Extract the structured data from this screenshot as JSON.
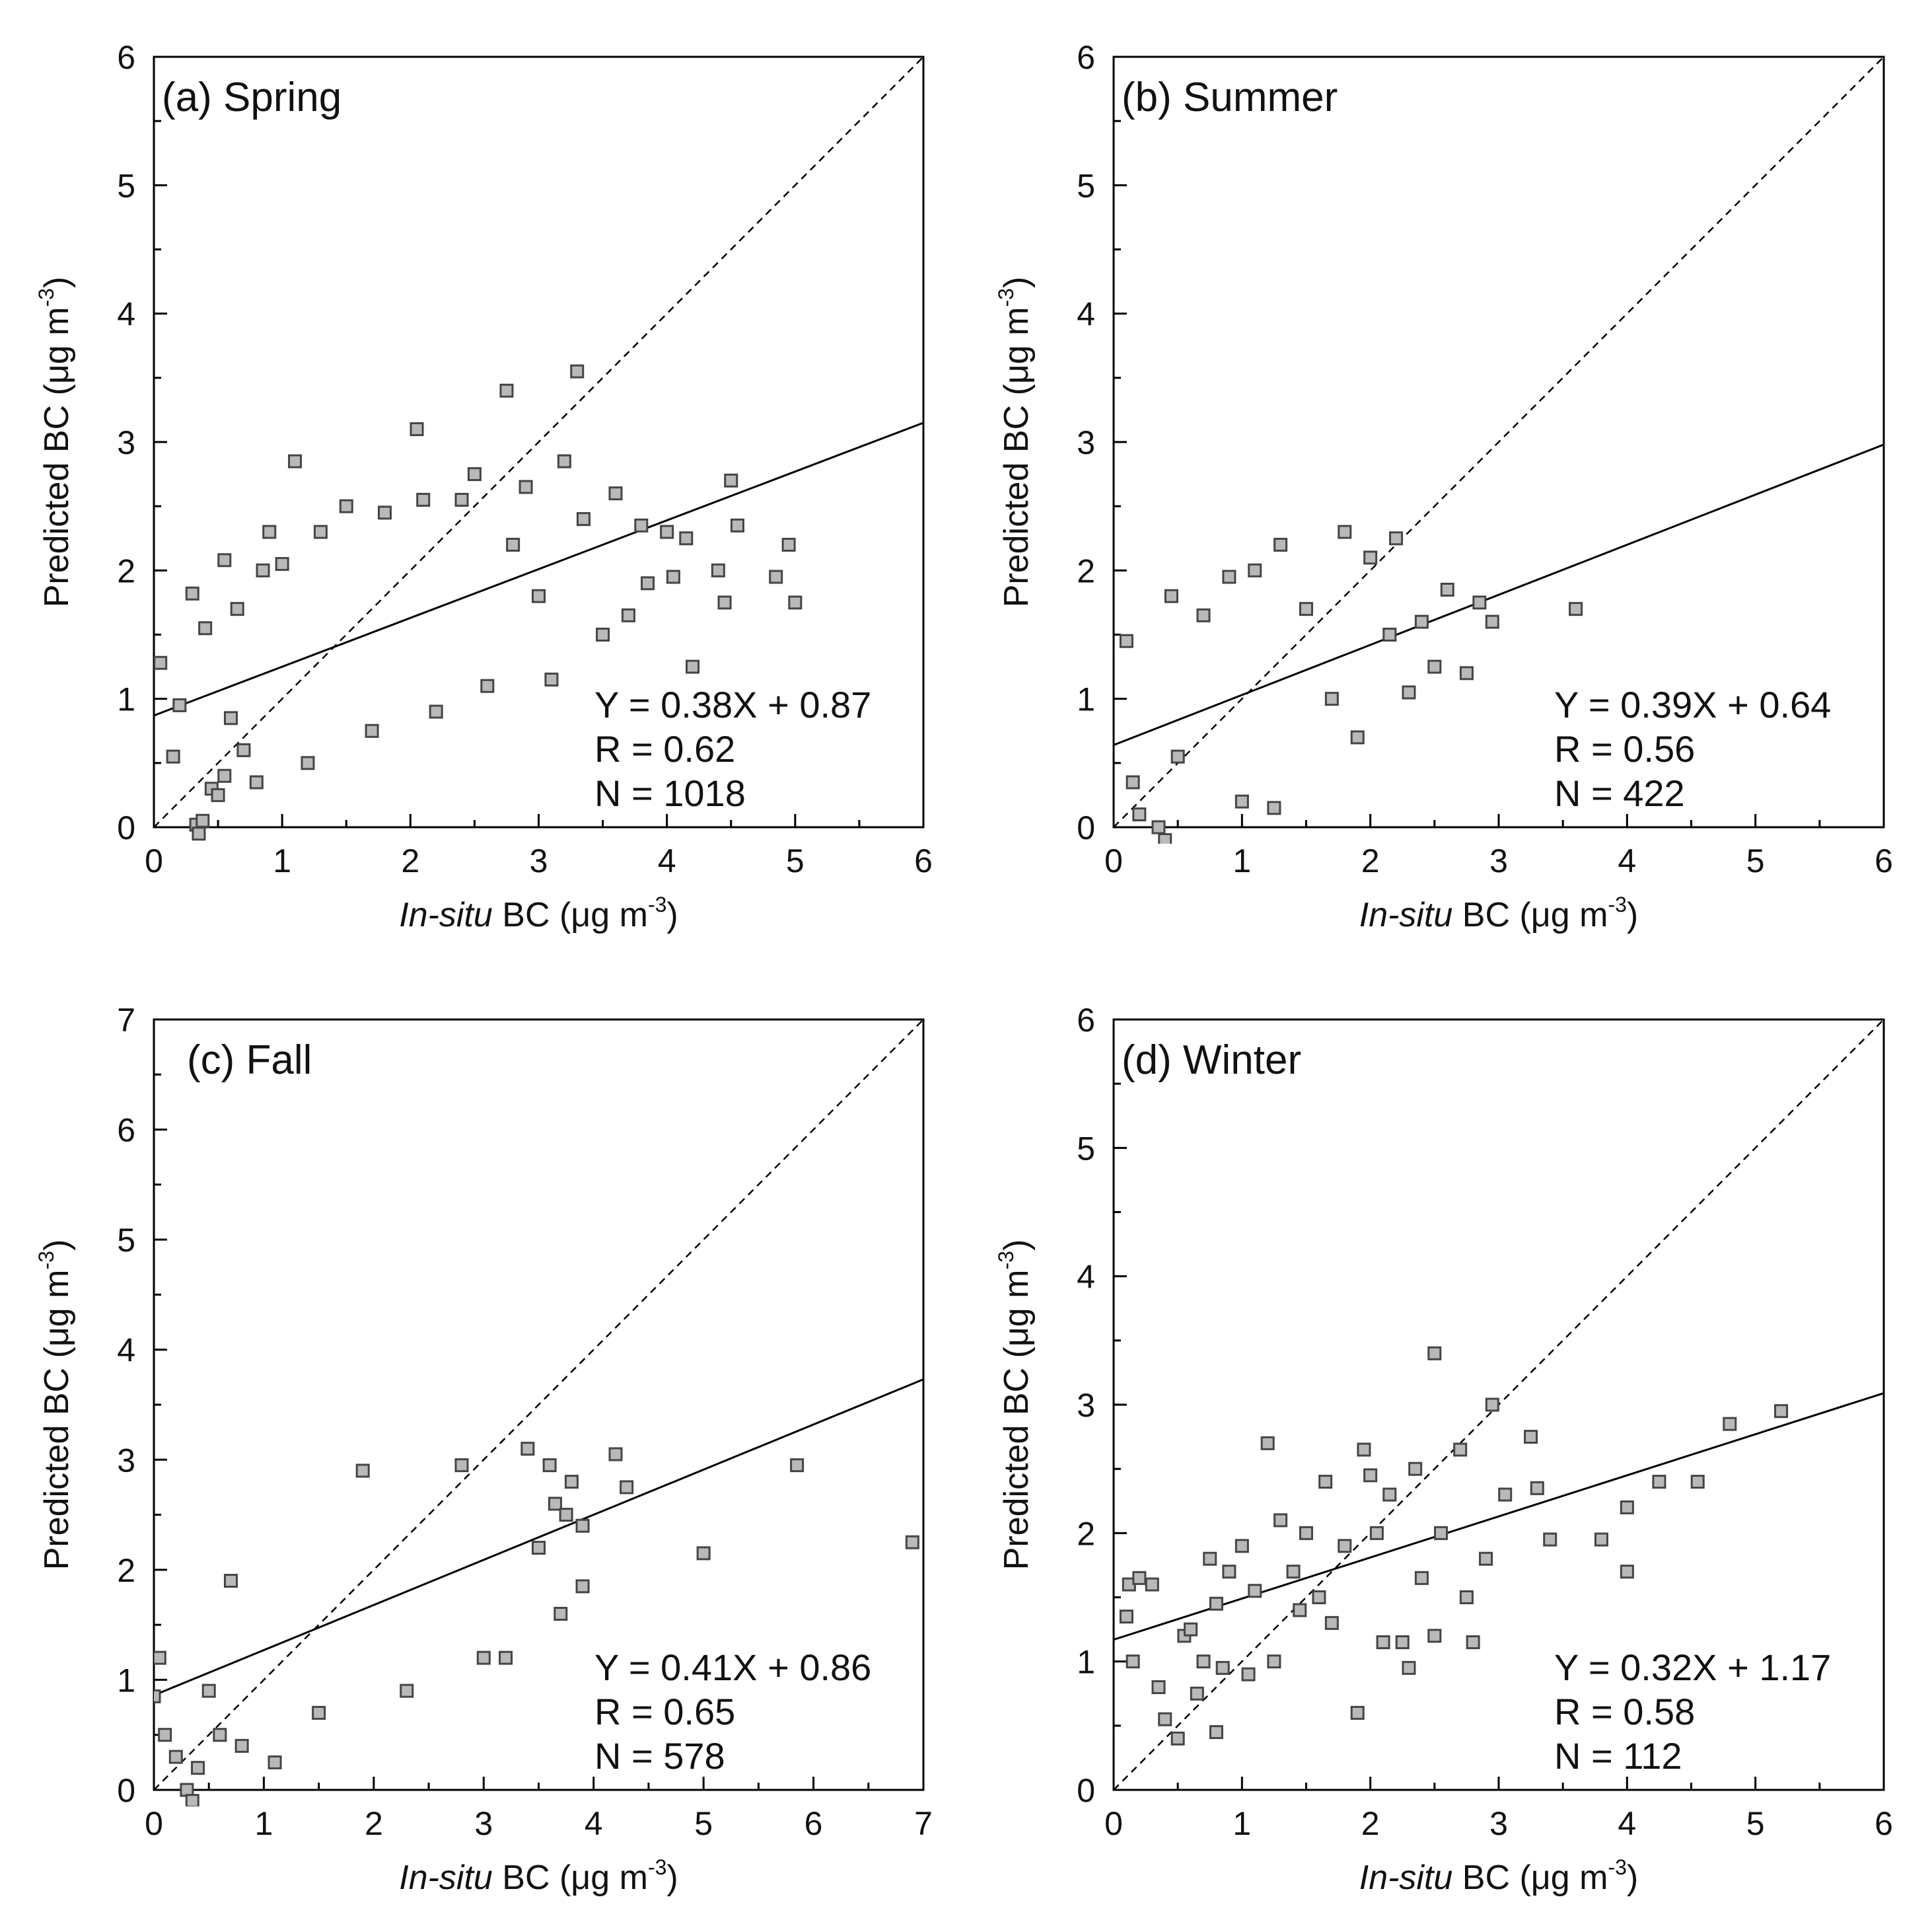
{
  "figure": {
    "y_axis_label": "Predicted BC (μg m",
    "x_axis_label_italic": "In-situ",
    "x_axis_label_rest": " BC (μg m",
    "unit_exponent": "-3",
    "unit_close": ")"
  },
  "chart_data": [
    {
      "type": "scatter",
      "title": "(a) Spring",
      "xlim": [
        0,
        6
      ],
      "ylim": [
        0,
        6
      ],
      "xticks": [
        "0",
        "1",
        "2",
        "3",
        "4",
        "5",
        "6"
      ],
      "yticks": [
        "0",
        "1",
        "2",
        "3",
        "4",
        "5",
        "6"
      ],
      "fit": {
        "slope": 0.38,
        "intercept": 0.87
      },
      "reference_line": "1:1",
      "stats": {
        "equation": "Y = 0.38X + 0.87",
        "r": "R = 0.62",
        "n": "N = 1018"
      },
      "points": [
        [
          0.05,
          1.28
        ],
        [
          0.15,
          0.55
        ],
        [
          0.2,
          0.95
        ],
        [
          0.3,
          1.82
        ],
        [
          0.33,
          0.02
        ],
        [
          0.35,
          -0.05
        ],
        [
          0.38,
          0.05
        ],
        [
          0.4,
          1.55
        ],
        [
          0.45,
          0.3
        ],
        [
          0.5,
          0.25
        ],
        [
          0.55,
          2.08
        ],
        [
          0.55,
          0.4
        ],
        [
          0.6,
          0.85
        ],
        [
          0.65,
          1.7
        ],
        [
          0.7,
          0.6
        ],
        [
          0.8,
          0.35
        ],
        [
          0.85,
          2.0
        ],
        [
          0.9,
          2.3
        ],
        [
          1.0,
          2.05
        ],
        [
          1.1,
          2.85
        ],
        [
          1.2,
          0.5
        ],
        [
          1.3,
          2.3
        ],
        [
          1.5,
          2.5
        ],
        [
          1.7,
          0.75
        ],
        [
          1.8,
          2.45
        ],
        [
          2.05,
          3.1
        ],
        [
          2.1,
          2.55
        ],
        [
          2.2,
          0.9
        ],
        [
          2.4,
          2.55
        ],
        [
          2.5,
          2.75
        ],
        [
          2.6,
          1.1
        ],
        [
          2.75,
          3.4
        ],
        [
          2.8,
          2.2
        ],
        [
          2.9,
          2.65
        ],
        [
          3.0,
          1.8
        ],
        [
          3.1,
          1.15
        ],
        [
          3.2,
          2.85
        ],
        [
          3.3,
          3.55
        ],
        [
          3.35,
          2.4
        ],
        [
          3.5,
          1.5
        ],
        [
          3.6,
          2.6
        ],
        [
          3.7,
          1.65
        ],
        [
          3.8,
          2.35
        ],
        [
          3.85,
          1.9
        ],
        [
          4.0,
          2.3
        ],
        [
          4.05,
          1.95
        ],
        [
          4.15,
          2.25
        ],
        [
          4.2,
          1.25
        ],
        [
          4.4,
          2.0
        ],
        [
          4.45,
          1.75
        ],
        [
          4.5,
          2.7
        ],
        [
          4.55,
          2.35
        ],
        [
          4.85,
          1.95
        ],
        [
          4.95,
          2.2
        ],
        [
          5.0,
          1.75
        ]
      ]
    },
    {
      "type": "scatter",
      "title": "(b) Summer",
      "xlim": [
        0,
        6
      ],
      "ylim": [
        0,
        6
      ],
      "xticks": [
        "0",
        "1",
        "2",
        "3",
        "4",
        "5",
        "6"
      ],
      "yticks": [
        "0",
        "1",
        "2",
        "3",
        "4",
        "5",
        "6"
      ],
      "fit": {
        "slope": 0.39,
        "intercept": 0.64
      },
      "reference_line": "1:1",
      "stats": {
        "equation": "Y = 0.39X + 0.64",
        "r": "R = 0.56",
        "n": "N = 422"
      },
      "points": [
        [
          0.1,
          1.45
        ],
        [
          0.15,
          0.35
        ],
        [
          0.2,
          0.1
        ],
        [
          0.35,
          0.0
        ],
        [
          0.4,
          -0.1
        ],
        [
          0.45,
          1.8
        ],
        [
          0.5,
          0.55
        ],
        [
          0.7,
          1.65
        ],
        [
          0.9,
          1.95
        ],
        [
          1.0,
          0.2
        ],
        [
          1.1,
          2.0
        ],
        [
          1.25,
          0.15
        ],
        [
          1.3,
          2.2
        ],
        [
          1.5,
          1.7
        ],
        [
          1.7,
          1.0
        ],
        [
          1.8,
          2.3
        ],
        [
          1.9,
          0.7
        ],
        [
          2.0,
          2.1
        ],
        [
          2.15,
          1.5
        ],
        [
          2.2,
          2.25
        ],
        [
          2.3,
          1.05
        ],
        [
          2.4,
          1.6
        ],
        [
          2.5,
          1.25
        ],
        [
          2.6,
          1.85
        ],
        [
          2.75,
          1.2
        ],
        [
          2.85,
          1.75
        ],
        [
          2.95,
          1.6
        ],
        [
          3.6,
          1.7
        ]
      ]
    },
    {
      "type": "scatter",
      "title": "(c) Fall",
      "xlim": [
        0,
        7
      ],
      "ylim": [
        0,
        7
      ],
      "xticks": [
        "0",
        "1",
        "2",
        "3",
        "4",
        "5",
        "6",
        "7"
      ],
      "yticks": [
        "0",
        "1",
        "2",
        "3",
        "4",
        "5",
        "6",
        "7"
      ],
      "fit": {
        "slope": 0.41,
        "intercept": 0.86
      },
      "reference_line": "1:1",
      "stats": {
        "equation": "Y = 0.41X + 0.86",
        "r": "R = 0.65",
        "n": "N = 578"
      },
      "points": [
        [
          0.0,
          0.85
        ],
        [
          0.05,
          1.2
        ],
        [
          0.1,
          0.5
        ],
        [
          0.2,
          0.3
        ],
        [
          0.3,
          0.0
        ],
        [
          0.35,
          -0.1
        ],
        [
          0.4,
          0.2
        ],
        [
          0.5,
          0.9
        ],
        [
          0.6,
          0.5
        ],
        [
          0.7,
          1.9
        ],
        [
          0.8,
          0.4
        ],
        [
          1.1,
          0.25
        ],
        [
          1.5,
          0.7
        ],
        [
          1.9,
          2.9
        ],
        [
          2.3,
          0.9
        ],
        [
          2.8,
          2.95
        ],
        [
          3.0,
          1.2
        ],
        [
          3.2,
          1.2
        ],
        [
          3.4,
          3.1
        ],
        [
          3.5,
          2.2
        ],
        [
          3.6,
          2.95
        ],
        [
          3.65,
          2.6
        ],
        [
          3.7,
          1.6
        ],
        [
          3.75,
          2.5
        ],
        [
          3.8,
          2.8
        ],
        [
          3.9,
          2.4
        ],
        [
          3.9,
          1.85
        ],
        [
          4.2,
          3.05
        ],
        [
          4.3,
          2.75
        ],
        [
          5.0,
          2.15
        ],
        [
          5.85,
          2.95
        ],
        [
          6.9,
          2.25
        ]
      ]
    },
    {
      "type": "scatter",
      "title": "(d) Winter",
      "xlim": [
        0,
        6
      ],
      "ylim": [
        0,
        6
      ],
      "xticks": [
        "0",
        "1",
        "2",
        "3",
        "4",
        "5",
        "6"
      ],
      "yticks": [
        "0",
        "1",
        "2",
        "3",
        "4",
        "5",
        "6"
      ],
      "fit": {
        "slope": 0.32,
        "intercept": 1.17
      },
      "reference_line": "1:1",
      "stats": {
        "equation": "Y = 0.32X + 1.17",
        "r": "R = 0.58",
        "n": "N = 112"
      },
      "points": [
        [
          0.1,
          1.35
        ],
        [
          0.12,
          1.6
        ],
        [
          0.15,
          1.0
        ],
        [
          0.2,
          1.65
        ],
        [
          0.3,
          1.6
        ],
        [
          0.35,
          0.8
        ],
        [
          0.4,
          0.55
        ],
        [
          0.5,
          0.4
        ],
        [
          0.55,
          1.2
        ],
        [
          0.6,
          1.25
        ],
        [
          0.65,
          0.75
        ],
        [
          0.7,
          1.0
        ],
        [
          0.75,
          1.8
        ],
        [
          0.8,
          1.45
        ],
        [
          0.8,
          0.45
        ],
        [
          0.85,
          0.95
        ],
        [
          0.9,
          1.7
        ],
        [
          1.0,
          1.9
        ],
        [
          1.05,
          0.9
        ],
        [
          1.1,
          1.55
        ],
        [
          1.2,
          2.7
        ],
        [
          1.25,
          1.0
        ],
        [
          1.3,
          2.1
        ],
        [
          1.4,
          1.7
        ],
        [
          1.45,
          1.4
        ],
        [
          1.5,
          2.0
        ],
        [
          1.6,
          1.5
        ],
        [
          1.65,
          2.4
        ],
        [
          1.7,
          1.3
        ],
        [
          1.8,
          1.9
        ],
        [
          1.9,
          0.6
        ],
        [
          1.95,
          2.65
        ],
        [
          2.0,
          2.45
        ],
        [
          2.05,
          2.0
        ],
        [
          2.1,
          1.15
        ],
        [
          2.15,
          2.3
        ],
        [
          2.25,
          1.15
        ],
        [
          2.3,
          0.95
        ],
        [
          2.35,
          2.5
        ],
        [
          2.4,
          1.65
        ],
        [
          2.5,
          3.4
        ],
        [
          2.5,
          1.2
        ],
        [
          2.55,
          2.0
        ],
        [
          2.7,
          2.65
        ],
        [
          2.75,
          1.5
        ],
        [
          2.8,
          1.15
        ],
        [
          2.9,
          1.8
        ],
        [
          2.95,
          3.0
        ],
        [
          3.05,
          2.3
        ],
        [
          3.25,
          2.75
        ],
        [
          3.3,
          2.35
        ],
        [
          3.4,
          1.95
        ],
        [
          3.8,
          1.95
        ],
        [
          4.0,
          2.2
        ],
        [
          4.0,
          1.7
        ],
        [
          4.25,
          2.4
        ],
        [
          4.55,
          2.4
        ],
        [
          4.8,
          2.85
        ],
        [
          5.2,
          2.95
        ]
      ]
    }
  ]
}
